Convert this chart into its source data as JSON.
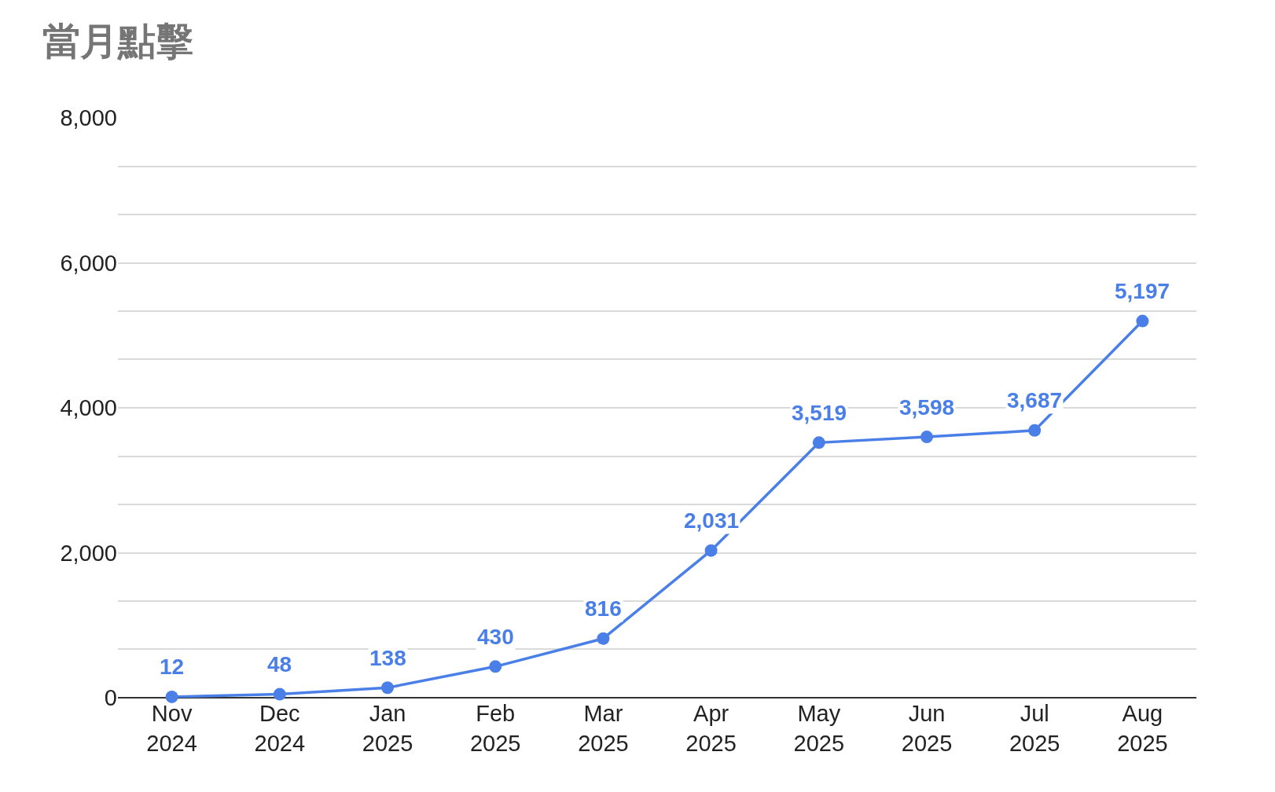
{
  "chart_data": {
    "type": "line",
    "title": "當月點擊",
    "categories": [
      "Nov\n2024",
      "Dec\n2024",
      "Jan\n2025",
      "Feb\n2025",
      "Mar\n2025",
      "Apr\n2025",
      "May\n2025",
      "Jun\n2025",
      "Jul\n2025",
      "Aug\n2025"
    ],
    "series": [
      {
        "color": "#4a7fe8",
        "values": [
          12,
          48,
          138,
          430,
          816,
          2031,
          3519,
          3598,
          3687,
          5197
        ]
      }
    ],
    "value_labels": [
      "12",
      "48",
      "138",
      "430",
      "816",
      "2,031",
      "3,519",
      "3,598",
      "3,687",
      "5,197"
    ],
    "ylim": [
      0,
      8000
    ],
    "yticks": [
      {
        "value": 0,
        "label": "0"
      },
      {
        "value": 667,
        "label": null
      },
      {
        "value": 1333,
        "label": null
      },
      {
        "value": 2000,
        "label": "2,000"
      },
      {
        "value": 2667,
        "label": null
      },
      {
        "value": 3333,
        "label": null
      },
      {
        "value": 4000,
        "label": "4,000"
      },
      {
        "value": 4667,
        "label": null
      },
      {
        "value": 5333,
        "label": null
      },
      {
        "value": 6000,
        "label": "6,000"
      },
      {
        "value": 6667,
        "label": null
      },
      {
        "value": 7333,
        "label": null
      },
      {
        "value": 8000,
        "label": "8,000"
      }
    ],
    "grid": "y",
    "legend": false,
    "marker": "circle",
    "line_style": "solid"
  }
}
